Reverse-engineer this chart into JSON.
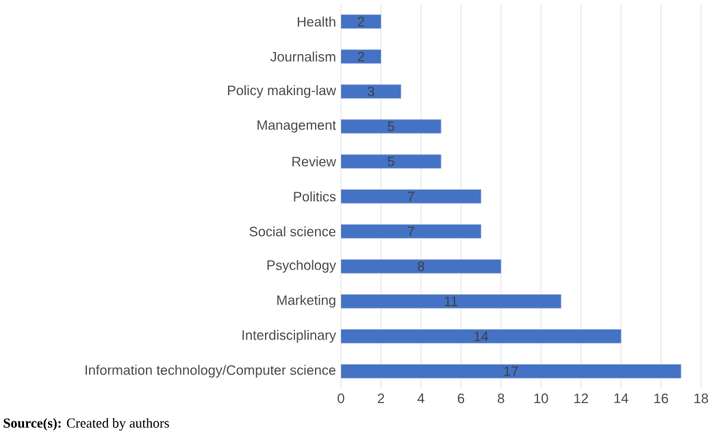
{
  "chart_data": {
    "type": "bar",
    "orientation": "horizontal",
    "categories": [
      "Health",
      "Journalism",
      "Policy making-law",
      "Management",
      "Review",
      "Politics",
      "Social science",
      "Psychology",
      "Marketing",
      "Interdisciplinary",
      "Information technology/Computer science"
    ],
    "values": [
      2,
      2,
      3,
      5,
      5,
      7,
      7,
      8,
      11,
      14,
      17
    ],
    "color": "#4472c4",
    "xlim": [
      0,
      18
    ],
    "xticks": [
      0,
      2,
      4,
      6,
      8,
      10,
      12,
      14,
      16,
      18
    ],
    "grid": "x",
    "data_labels": true,
    "annotations": [
      "**Source(s):** Created by authors"
    ]
  }
}
